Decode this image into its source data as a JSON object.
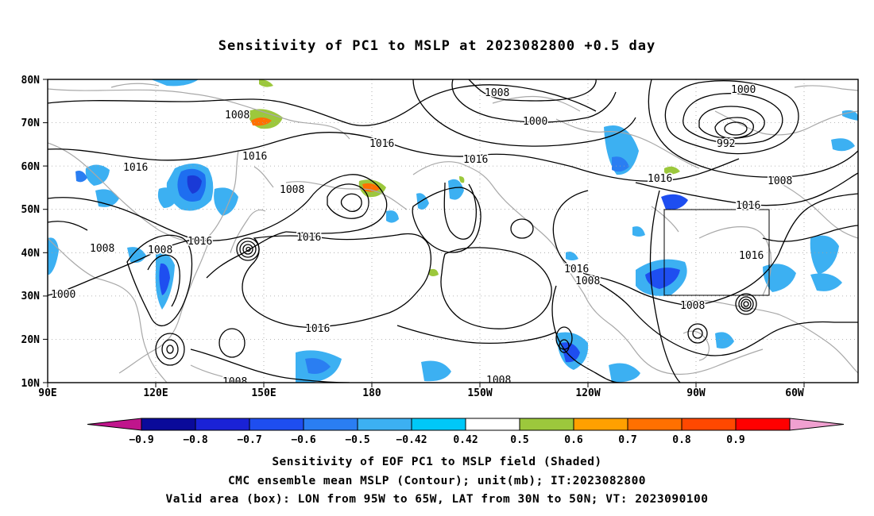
{
  "title": "Sensitivity of PC1 to MSLP at 2023082800 +0.5 day",
  "lat_labels": [
    "80N",
    "70N",
    "60N",
    "50N",
    "40N",
    "30N",
    "20N",
    "10N"
  ],
  "lon_labels": [
    "90E",
    "120E",
    "150E",
    "180",
    "150W",
    "120W",
    "90W",
    "60W"
  ],
  "contour_labels": [
    "1008",
    "1000",
    "1016",
    "1016",
    "1016",
    "1008",
    "1016",
    "1016",
    "1008",
    "1016",
    "1008",
    "1008",
    "1000",
    "1016",
    "1008",
    "1016",
    "1016",
    "1008",
    "1016",
    "1000",
    "992",
    "1008",
    "1008",
    "1008",
    "1016",
    "1000"
  ],
  "colorbar": {
    "labels": [
      "−0.9",
      "−0.8",
      "−0.7",
      "−0.6",
      "−0.5",
      "−0.42",
      "0.42",
      "0.5",
      "0.6",
      "0.7",
      "0.8",
      "0.9"
    ],
    "colors": [
      "#c0158c",
      "#0a0a9a",
      "#1a22d6",
      "#1e4ef0",
      "#2a7ef2",
      "#3cb0f2",
      "#00c8f8",
      "#ffffff",
      "#9cc83c",
      "#ffa000",
      "#ff7000",
      "#ff4800",
      "#ff0000",
      "#f0a0d0"
    ]
  },
  "captions": [
    "Sensitivity of EOF PC1 to MSLP field (Shaded)",
    "CMC ensemble mean MSLP (Contour); unit(mb); IT:2023082800",
    "Valid area (box): LON from 95W to 65W, LAT from 30N to 50N; VT: 2023090100"
  ]
}
